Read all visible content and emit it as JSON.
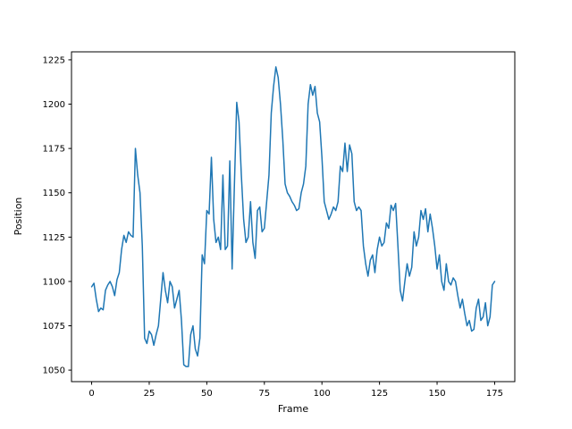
{
  "chart_data": {
    "type": "line",
    "title": "",
    "xlabel": "Frame",
    "ylabel": "Position",
    "line_color": "#1f77b4",
    "line_width": 1.5,
    "xlim": [
      -8.75,
      183.75
    ],
    "ylim": [
      1043.5,
      1229.5
    ],
    "xticks": [
      0,
      25,
      50,
      75,
      100,
      125,
      150,
      175
    ],
    "yticks": [
      1050,
      1075,
      1100,
      1125,
      1150,
      1175,
      1200,
      1225
    ],
    "x_start": 0,
    "x_step": 1,
    "values": [
      1097,
      1099,
      1090,
      1083,
      1085,
      1084,
      1095,
      1098,
      1100,
      1097,
      1092,
      1101,
      1105,
      1118,
      1126,
      1122,
      1128,
      1126,
      1125,
      1175,
      1160,
      1150,
      1120,
      1068,
      1065,
      1072,
      1070,
      1064,
      1070,
      1075,
      1090,
      1105,
      1095,
      1088,
      1100,
      1097,
      1085,
      1090,
      1095,
      1078,
      1053,
      1052,
      1052,
      1070,
      1075,
      1062,
      1058,
      1068,
      1115,
      1110,
      1140,
      1138,
      1170,
      1135,
      1122,
      1125,
      1118,
      1160,
      1118,
      1120,
      1168,
      1107,
      1155,
      1201,
      1190,
      1160,
      1135,
      1122,
      1125,
      1145,
      1122,
      1113,
      1140,
      1142,
      1128,
      1130,
      1145,
      1160,
      1195,
      1210,
      1221,
      1215,
      1200,
      1180,
      1155,
      1150,
      1148,
      1145,
      1143,
      1140,
      1141,
      1150,
      1155,
      1165,
      1200,
      1211,
      1205,
      1210,
      1195,
      1190,
      1170,
      1145,
      1140,
      1135,
      1138,
      1142,
      1140,
      1145,
      1165,
      1162,
      1178,
      1162,
      1177,
      1172,
      1145,
      1140,
      1142,
      1140,
      1120,
      1110,
      1103,
      1112,
      1115,
      1105,
      1118,
      1125,
      1120,
      1122,
      1133,
      1130,
      1143,
      1140,
      1144,
      1120,
      1095,
      1089,
      1100,
      1110,
      1103,
      1108,
      1128,
      1120,
      1125,
      1140,
      1135,
      1141,
      1128,
      1138,
      1130,
      1120,
      1107,
      1115,
      1100,
      1095,
      1110,
      1100,
      1098,
      1102,
      1100,
      1092,
      1085,
      1090,
      1082,
      1075,
      1078,
      1072,
      1073,
      1085,
      1090,
      1078,
      1080,
      1088,
      1075,
      1080,
      1098,
      1100
    ]
  }
}
